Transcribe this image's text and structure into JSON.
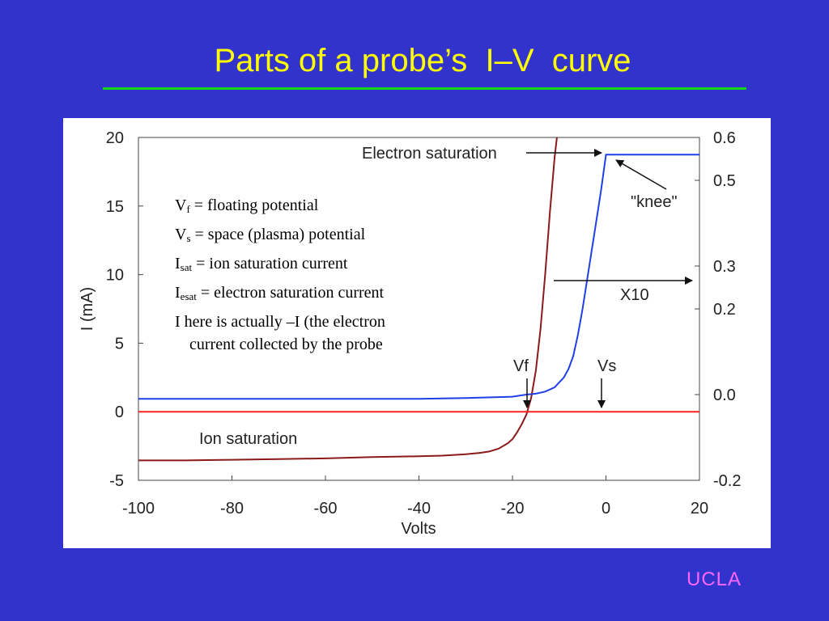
{
  "slide": {
    "title": "Parts of a probe’s  I–V  curve",
    "footer": "UCLA"
  },
  "notes": [
    {
      "main": "V",
      "sub": "f",
      "rest": " = floating potential"
    },
    {
      "main": "V",
      "sub": "s",
      "rest": " = space (plasma) potential"
    },
    {
      "main": "I",
      "sub": "sat",
      "rest": " = ion saturation current"
    },
    {
      "main": "I",
      "sub": "esat",
      "rest": " = electron saturation current"
    },
    {
      "main": "I here is actually –I (the electron",
      "sub": "",
      "rest": ""
    },
    {
      "main": "current collected by the probe",
      "sub": "",
      "rest": ""
    }
  ],
  "colors": {
    "background": "#3232cd",
    "title": "#ffff00",
    "rule": "#14d814",
    "footer": "#ff66ff",
    "iv_curve": "#8b1a1a",
    "x10_curve": "#1f3fe8",
    "zero_line": "#ff2020"
  },
  "chart_data": {
    "type": "line",
    "xlabel": "Volts",
    "ylabel": "I (mA)",
    "xlim": [
      -100,
      20
    ],
    "ylim": [
      -5,
      20
    ],
    "y2lim": [
      -0.2,
      0.6
    ],
    "xticks": [
      "-100",
      "-80",
      "-60",
      "-40",
      "-20",
      "0",
      "20"
    ],
    "yticks": [
      "-5",
      "0",
      "5",
      "10",
      "15",
      "20"
    ],
    "y2ticks": [
      "-0.2",
      "0.0",
      "0.2",
      "0.3",
      "0.5",
      "0.6"
    ],
    "series": [
      {
        "axis": "left",
        "color": "#8b1a1a",
        "x": [
          -100,
          -90,
          -80,
          -70,
          -60,
          -50,
          -40,
          -35,
          -30,
          -27,
          -25,
          -23,
          -21,
          -20,
          -19,
          -18,
          -17,
          -16,
          -15,
          -14,
          -13,
          -12,
          -11,
          -10.5
        ],
        "y": [
          -3.55,
          -3.55,
          -3.5,
          -3.45,
          -3.4,
          -3.3,
          -3.25,
          -3.2,
          -3.1,
          -3.0,
          -2.9,
          -2.7,
          -2.3,
          -2.0,
          -1.5,
          -0.9,
          -0.2,
          1.0,
          3.0,
          6.0,
          10.0,
          14.5,
          18.5,
          20
        ]
      },
      {
        "axis": "right",
        "color": "#1f3fe8",
        "x": [
          -100,
          -80,
          -60,
          -40,
          -30,
          -20,
          -17,
          -15,
          -13,
          -11,
          -9,
          -8,
          -7,
          -6,
          -5,
          -4,
          -3,
          -2,
          -1,
          0,
          20
        ],
        "y": [
          -0.01,
          -0.01,
          -0.01,
          -0.01,
          -0.008,
          -0.005,
          0.0,
          0.002,
          0.007,
          0.017,
          0.04,
          0.06,
          0.09,
          0.14,
          0.2,
          0.27,
          0.34,
          0.41,
          0.48,
          0.56,
          0.56
        ]
      },
      {
        "axis": "left",
        "color": "#ff2020",
        "x": [
          -100,
          20
        ],
        "y": [
          0,
          0
        ]
      }
    ],
    "annotations": {
      "electron_saturation": "Electron saturation",
      "knee": "\"knee\"",
      "x10": "X10",
      "vf": "Vf",
      "vs": "Vs",
      "ion_saturation": "Ion saturation"
    }
  }
}
